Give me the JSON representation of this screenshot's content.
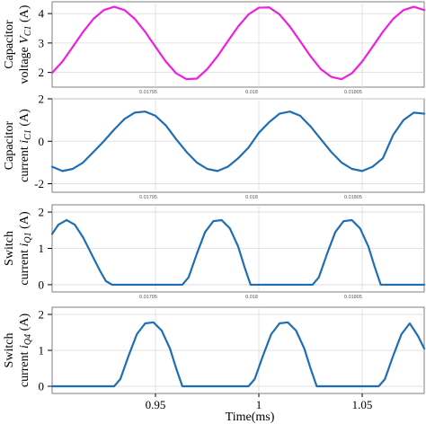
{
  "chart_data": [
    {
      "type": "line",
      "ylabel_line1": "Capacitor",
      "ylabel_line2_text": "voltage ",
      "ylabel_line2_var": "V",
      "ylabel_line2_sub": "C1",
      "ylabel_line2_unit": " (A)",
      "xlim": [
        0.9,
        1.08
      ],
      "ylim": [
        1.5,
        4.4
      ],
      "yticks": [
        2,
        3,
        4
      ],
      "ytick_labels": [
        "2",
        "3",
        "4"
      ],
      "secondary_xtick_labels": [
        "0.01795",
        "0.018",
        "0.01805"
      ],
      "color": "#ee1fe0",
      "series": [
        {
          "x": [
            0.9,
            0.905,
            0.91,
            0.915,
            0.92,
            0.925,
            0.93,
            0.935,
            0.94,
            0.945,
            0.95,
            0.955,
            0.96,
            0.965,
            0.97,
            0.975,
            0.98,
            0.985,
            0.99,
            0.995,
            1.0,
            1.005,
            1.01,
            1.015,
            1.02,
            1.025,
            1.03,
            1.035,
            1.04,
            1.045,
            1.05,
            1.055,
            1.06,
            1.065,
            1.07,
            1.075,
            1.08
          ],
          "y": [
            1.99,
            2.37,
            2.87,
            3.38,
            3.82,
            4.12,
            4.23,
            4.12,
            3.82,
            3.38,
            2.87,
            2.37,
            1.97,
            1.77,
            1.79,
            2.11,
            2.55,
            3.06,
            3.56,
            3.97,
            4.2,
            4.21,
            3.97,
            3.56,
            3.06,
            2.55,
            2.11,
            1.85,
            1.77,
            1.97,
            2.37,
            2.87,
            3.38,
            3.82,
            4.12,
            4.23,
            4.12
          ]
        }
      ]
    },
    {
      "type": "line",
      "ylabel_line1": "Capacitor",
      "ylabel_line2_text": "current ",
      "ylabel_line2_var": "i",
      "ylabel_line2_sub": "C1",
      "ylabel_line2_unit": " (A)",
      "xlim": [
        0.9,
        1.08
      ],
      "ylim": [
        -2.4,
        2.0
      ],
      "yticks": [
        -2,
        0,
        2
      ],
      "ytick_labels": [
        "-2",
        "0",
        "2"
      ],
      "secondary_xtick_labels": [
        "0.01795",
        "0.018",
        "0.01805"
      ],
      "color": "#1f6eb4",
      "series": [
        {
          "x": [
            0.9,
            0.905,
            0.91,
            0.915,
            0.92,
            0.925,
            0.93,
            0.935,
            0.94,
            0.945,
            0.95,
            0.955,
            0.96,
            0.965,
            0.97,
            0.975,
            0.98,
            0.985,
            0.99,
            0.995,
            1.0,
            1.005,
            1.01,
            1.015,
            1.02,
            1.025,
            1.03,
            1.035,
            1.04,
            1.045,
            1.05,
            1.055,
            1.06,
            1.065,
            1.07,
            1.075,
            1.08
          ],
          "y": [
            -1.2,
            -1.4,
            -1.3,
            -1.0,
            -0.5,
            0.0,
            0.55,
            1.05,
            1.35,
            1.4,
            1.2,
            0.75,
            0.1,
            -0.5,
            -1.0,
            -1.3,
            -1.4,
            -1.2,
            -0.8,
            -0.3,
            0.4,
            0.9,
            1.3,
            1.4,
            1.2,
            0.7,
            0.1,
            -0.5,
            -1.0,
            -1.3,
            -1.4,
            -1.2,
            -0.8,
            0.3,
            1.0,
            1.35,
            1.3
          ]
        }
      ]
    },
    {
      "type": "line",
      "ylabel_line1": "Switch",
      "ylabel_line2_text": "current ",
      "ylabel_line2_var": "i",
      "ylabel_line2_sub": "Q1",
      "ylabel_line2_unit": " (A)",
      "xlim": [
        0.9,
        1.08
      ],
      "ylim": [
        -0.2,
        2.2
      ],
      "yticks": [
        0,
        1,
        2
      ],
      "ytick_labels": [
        "0",
        "1",
        "2"
      ],
      "secondary_xtick_labels": [
        "0.01795",
        "0.018",
        "0.01805"
      ],
      "color": "#1f6eb4",
      "series": [
        {
          "x": [
            0.9,
            0.903,
            0.907,
            0.911,
            0.915,
            0.919,
            0.923,
            0.926,
            0.929,
            0.933,
            0.963,
            0.966,
            0.97,
            0.974,
            0.978,
            0.982,
            0.986,
            0.99,
            0.993,
            0.996,
            1.026,
            1.029,
            1.033,
            1.037,
            1.041,
            1.045,
            1.049,
            1.053,
            1.056,
            1.059,
            1.08
          ],
          "y": [
            1.4,
            1.65,
            1.78,
            1.65,
            1.3,
            0.85,
            0.4,
            0.1,
            0.0,
            0.0,
            0.0,
            0.2,
            0.85,
            1.45,
            1.75,
            1.78,
            1.55,
            1.05,
            0.5,
            0.0,
            0.0,
            0.2,
            0.85,
            1.45,
            1.75,
            1.78,
            1.55,
            1.05,
            0.5,
            0.0,
            0.0
          ]
        }
      ]
    },
    {
      "type": "line",
      "ylabel_line1": "Switch",
      "ylabel_line2_text": "current ",
      "ylabel_line2_var": "i",
      "ylabel_line2_sub": "Q4",
      "ylabel_line2_unit": " (A)",
      "xlim": [
        0.9,
        1.08
      ],
      "ylim": [
        -0.2,
        2.2
      ],
      "yticks": [
        0,
        1,
        2
      ],
      "ytick_labels": [
        "0",
        "1",
        "2"
      ],
      "xticks": [
        0.95,
        1.0,
        1.05
      ],
      "xtick_labels": [
        "0.95",
        "1",
        "1.05"
      ],
      "xlabel": "Time(ms)",
      "color": "#1f6eb4",
      "series": [
        {
          "x": [
            0.9,
            0.93,
            0.933,
            0.937,
            0.941,
            0.945,
            0.949,
            0.953,
            0.957,
            0.96,
            0.963,
            0.995,
            0.998,
            1.002,
            1.006,
            1.01,
            1.014,
            1.018,
            1.022,
            1.025,
            1.028,
            1.058,
            1.061,
            1.065,
            1.069,
            1.073,
            1.077,
            1.08
          ],
          "y": [
            0.0,
            0.0,
            0.2,
            0.85,
            1.45,
            1.75,
            1.78,
            1.55,
            1.05,
            0.5,
            0.0,
            0.0,
            0.2,
            0.85,
            1.45,
            1.75,
            1.78,
            1.55,
            1.05,
            0.5,
            0.0,
            0.0,
            0.2,
            0.85,
            1.45,
            1.75,
            1.4,
            1.05
          ]
        }
      ]
    }
  ]
}
